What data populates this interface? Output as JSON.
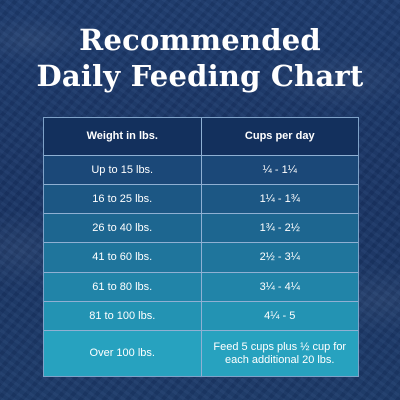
{
  "title": {
    "line1": "Recommended",
    "line2": "Daily Feeding Chart"
  },
  "table": {
    "headers": {
      "weight": "Weight in lbs.",
      "cups": "Cups per day"
    },
    "rows": [
      {
        "weight": "Up to 15 lbs.",
        "cups": "¼ - 1¼"
      },
      {
        "weight": "16 to 25 lbs.",
        "cups": "1¼ - 1¾"
      },
      {
        "weight": "26 to 40 lbs.",
        "cups": "1¾ - 2½"
      },
      {
        "weight": "41 to 60 lbs.",
        "cups": "2½ - 3¼"
      },
      {
        "weight": "61 to 80 lbs.",
        "cups": "3¼ - 4¼"
      },
      {
        "weight": "81 to 100 lbs.",
        "cups": "4¼ - 5"
      },
      {
        "weight": "Over 100 lbs.",
        "cups_line1": "Feed 5 cups plus ½ cup for",
        "cups_line2": "each additional 20 lbs."
      }
    ],
    "colors": {
      "header": "#13305d",
      "row_1": "#1b4878",
      "row_2": "#1c5784",
      "row_3": "#1d6690",
      "row_4": "#1f759c",
      "row_5": "#2184a8",
      "row_6": "#2393b3",
      "row_7": "#27a2bf"
    }
  }
}
